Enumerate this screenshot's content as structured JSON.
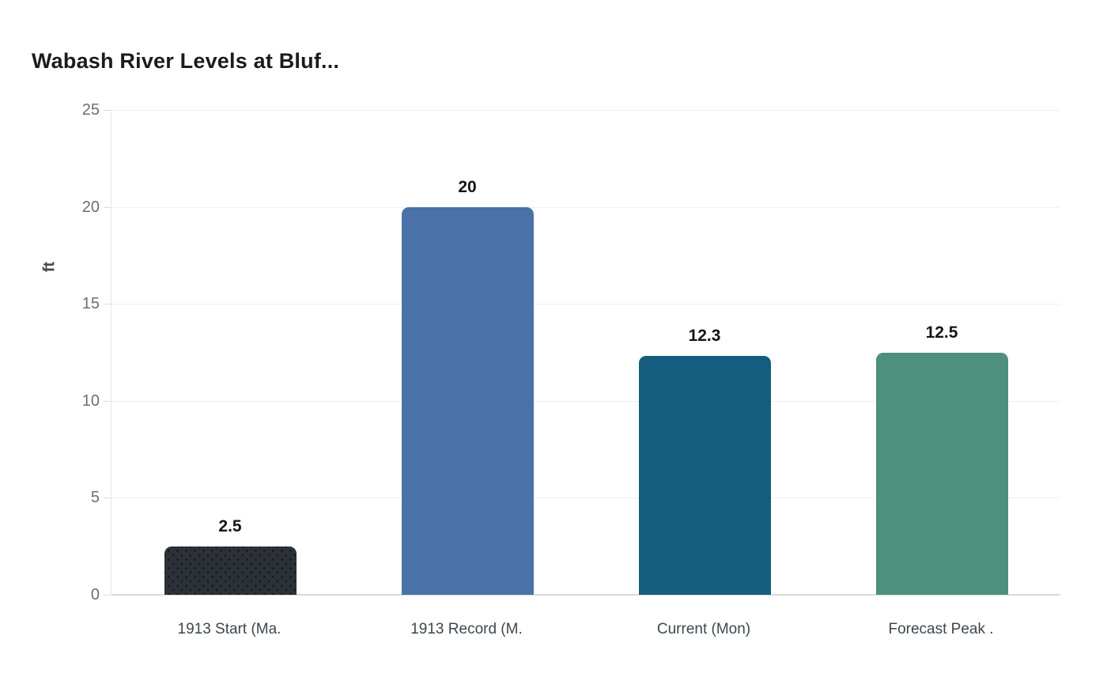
{
  "chart_data": {
    "type": "bar",
    "title": "Wabash River Levels at Bluf...",
    "xlabel": "",
    "ylabel": "ft",
    "ylim": [
      0,
      25
    ],
    "yticks": [
      0,
      5,
      10,
      15,
      20,
      25
    ],
    "grid": true,
    "legend_position": "none",
    "categories": [
      "1913 Start (Ma.",
      "1913 Record (M.",
      "Current (Mon)",
      "Forecast Peak ."
    ],
    "values": [
      2.5,
      20,
      12.3,
      12.5
    ],
    "value_labels": [
      "2.5",
      "20",
      "12.3",
      "12.5"
    ],
    "bar_colors": [
      "#2b3137",
      "#4a72a8",
      "#155d7f",
      "#4e8f7d"
    ],
    "bar_patterns": [
      "dots",
      "solid",
      "solid",
      "solid"
    ]
  },
  "page": {
    "background_color": "#ffffff",
    "gridline_color": "#efefef",
    "baseline_color": "#d9d9d9",
    "tick_label_color": "#6b6f72",
    "category_label_color": "#3e474e"
  }
}
